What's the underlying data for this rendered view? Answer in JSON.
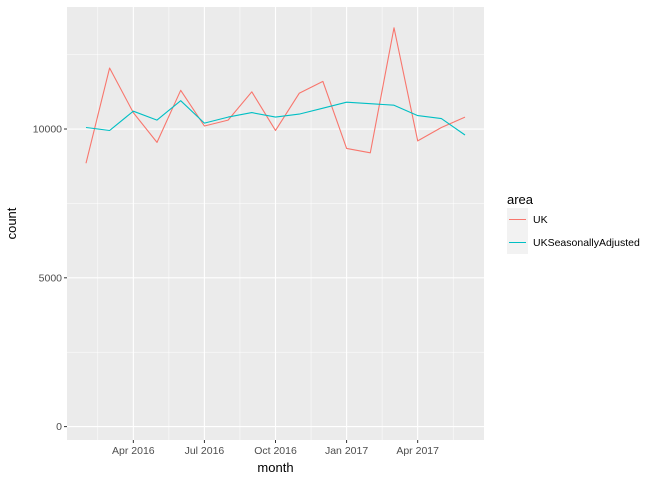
{
  "chart_data": {
    "type": "line",
    "xlabel": "month",
    "ylabel": "count",
    "x": [
      "2016-02",
      "2016-03",
      "2016-04",
      "2016-05",
      "2016-06",
      "2016-07",
      "2016-08",
      "2016-09",
      "2016-10",
      "2016-11",
      "2016-12",
      "2017-01",
      "2017-02",
      "2017-03",
      "2017-04",
      "2017-05",
      "2017-06"
    ],
    "x_ticks": [
      {
        "date": "2016-04",
        "label": "Apr 2016"
      },
      {
        "date": "2016-07",
        "label": "Jul 2016"
      },
      {
        "date": "2016-10",
        "label": "Oct 2016"
      },
      {
        "date": "2017-01",
        "label": "Jan 2017"
      },
      {
        "date": "2017-04",
        "label": "Apr 2017"
      }
    ],
    "y_ticks": [
      0,
      5000,
      10000
    ],
    "ylim": [
      -450,
      14100
    ],
    "grid": true,
    "legend": {
      "title": "area",
      "position": "right"
    },
    "series": [
      {
        "name": "UK",
        "color": "#F8766D",
        "values": [
          8850,
          12050,
          10550,
          9550,
          11300,
          10100,
          10300,
          11250,
          9950,
          11200,
          11600,
          9350,
          9200,
          13400,
          9600,
          10050,
          10400
        ]
      },
      {
        "name": "UKSeasonallyAdjusted",
        "color": "#00BFC4",
        "values": [
          10050,
          9950,
          10600,
          10300,
          10950,
          10200,
          10400,
          10550,
          10400,
          10500,
          10700,
          10900,
          10850,
          10800,
          10450,
          10350,
          9800
        ]
      }
    ]
  }
}
